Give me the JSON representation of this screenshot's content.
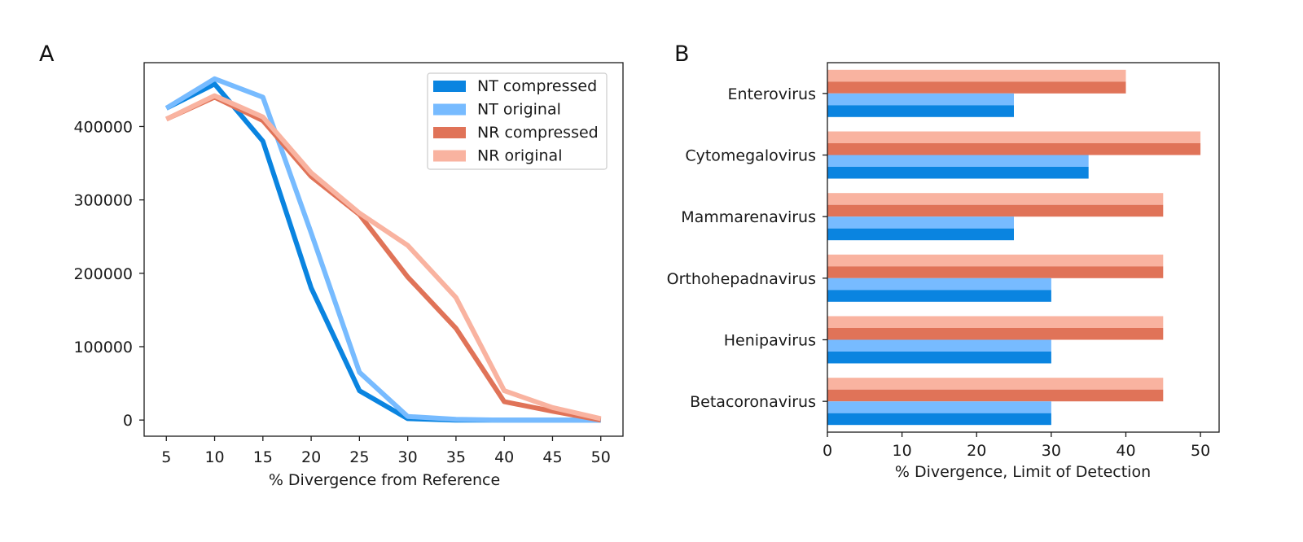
{
  "colors": {
    "nt_compressed": "#0a84e0",
    "nt_original": "#77bbff",
    "nr_compressed": "#e07358",
    "nr_original": "#f9b3a0"
  },
  "chart_data": [
    {
      "panel": "A",
      "type": "line",
      "xlabel": "% Divergence from Reference",
      "ylabel": "",
      "x": [
        5,
        10,
        15,
        20,
        25,
        30,
        35,
        40,
        45,
        50
      ],
      "xlim": [
        2.7,
        52.3
      ],
      "ylim": [
        -22000,
        487000
      ],
      "xticks": [
        5,
        10,
        15,
        20,
        25,
        30,
        35,
        40,
        45,
        50
      ],
      "yticks": [
        0,
        100000,
        200000,
        300000,
        400000
      ],
      "grid": false,
      "legend": "top-right",
      "series": [
        {
          "name": "NT compressed",
          "color": "#0a84e0",
          "values": [
            425000,
            458000,
            380000,
            180000,
            40000,
            2000,
            0,
            0,
            0,
            0
          ]
        },
        {
          "name": "NT original",
          "color": "#77bbff",
          "values": [
            425000,
            465000,
            440000,
            255000,
            65000,
            5000,
            1000,
            0,
            0,
            0
          ]
        },
        {
          "name": "NR compressed",
          "color": "#e07358",
          "values": [
            410000,
            440000,
            408000,
            332000,
            280000,
            195000,
            125000,
            25000,
            12000,
            0
          ]
        },
        {
          "name": "NR original",
          "color": "#f9b3a0",
          "values": [
            410000,
            442000,
            413000,
            337000,
            282000,
            238000,
            167000,
            40000,
            17000,
            2000
          ]
        }
      ]
    },
    {
      "panel": "B",
      "type": "bar",
      "orientation": "horizontal",
      "xlabel": "% Divergence, Limit of Detection",
      "ylabel": "",
      "xlim": [
        0,
        52.5
      ],
      "xticks": [
        0,
        10,
        20,
        30,
        40,
        50
      ],
      "grid": false,
      "categories": [
        "Enterovirus",
        "Cytomegalovirus",
        "Mammarenavirus",
        "Orthohepadnavirus",
        "Henipavirus",
        "Betacoronavirus"
      ],
      "series": [
        {
          "name": "NT compressed",
          "color": "#0a84e0",
          "values": [
            25,
            35,
            25,
            30,
            30,
            30
          ]
        },
        {
          "name": "NT original",
          "color": "#77bbff",
          "values": [
            25,
            35,
            25,
            30,
            30,
            30
          ]
        },
        {
          "name": "NR compressed",
          "color": "#e07358",
          "values": [
            40,
            50,
            45,
            45,
            45,
            45
          ]
        },
        {
          "name": "NR original",
          "color": "#f9b3a0",
          "values": [
            40,
            50,
            45,
            45,
            45,
            45
          ]
        }
      ]
    }
  ]
}
